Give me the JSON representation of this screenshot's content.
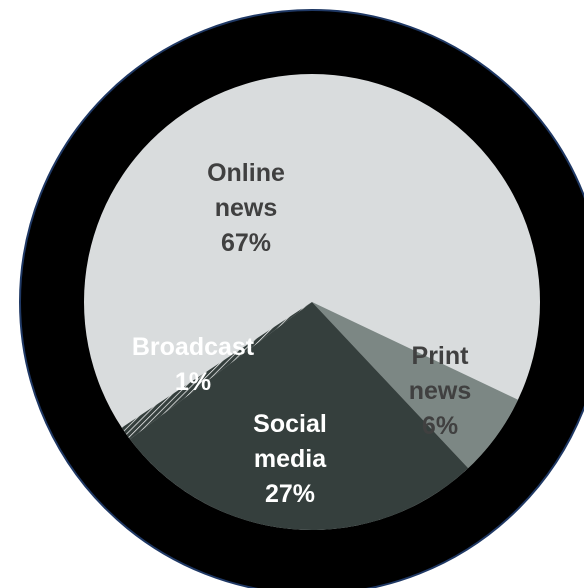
{
  "chart_data": {
    "type": "pie",
    "slices": [
      {
        "name": "Online news",
        "value": 67,
        "label_lines": [
          "Online",
          "news",
          "67%"
        ],
        "color": "#d9dcdd",
        "label_color": "#404040"
      },
      {
        "name": "Print news",
        "value": 6,
        "label_lines": [
          "Print",
          "news",
          "6%"
        ],
        "color": "#7c8784",
        "label_color": "#404040"
      },
      {
        "name": "Social media",
        "value": 27,
        "label_lines": [
          "Social",
          "media",
          "27%"
        ],
        "color": "#353f3d",
        "label_color": "#ffffff"
      },
      {
        "name": "Broadcast",
        "value": 1,
        "label_lines": [
          "Broadcast",
          "1%"
        ],
        "color": "#353f3d",
        "label_color": "#ffffff",
        "hatched": true
      }
    ],
    "ring_color": "#000000",
    "ring_outline_color": "#1f3864"
  }
}
